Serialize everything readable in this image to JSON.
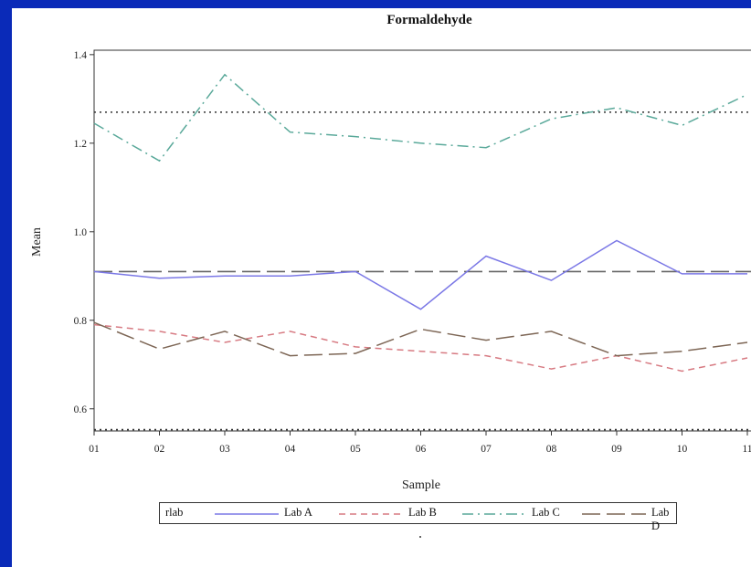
{
  "chart_data": {
    "type": "line",
    "title": "Formaldehyde",
    "xlabel": "Sample",
    "ylabel": "Mean",
    "categories": [
      "01",
      "02",
      "03",
      "04",
      "05",
      "06",
      "07",
      "08",
      "09",
      "10",
      "11"
    ],
    "y_ticks": [
      "0.6",
      "0.8",
      "1.0",
      "1.2",
      "1.4"
    ],
    "ylim": [
      0.55,
      1.41
    ],
    "series": [
      {
        "name": "Lab A",
        "color": "#7b78e6",
        "dash": "solid",
        "values": [
          0.91,
          0.895,
          0.9,
          0.9,
          0.91,
          0.825,
          0.945,
          0.89,
          0.98,
          0.905,
          0.905
        ]
      },
      {
        "name": "Lab B",
        "color": "#d77a82",
        "dash": "dashed",
        "values": [
          0.79,
          0.775,
          0.75,
          0.775,
          0.74,
          0.73,
          0.72,
          0.69,
          0.72,
          0.685,
          0.715
        ]
      },
      {
        "name": "Lab C",
        "color": "#5aa99a",
        "dash": "dashdot",
        "values": [
          1.245,
          1.16,
          1.355,
          1.225,
          1.215,
          1.2,
          1.19,
          1.255,
          1.28,
          1.24,
          1.31
        ]
      },
      {
        "name": "Lab D",
        "color": "#7d6655",
        "dash": "longdash",
        "values": [
          0.795,
          0.735,
          0.775,
          0.72,
          0.725,
          0.78,
          0.755,
          0.775,
          0.72,
          0.73,
          0.75
        ]
      }
    ],
    "reference_lines": [
      {
        "y": 1.27,
        "style": "dotted",
        "color": "#333333"
      },
      {
        "y": 0.91,
        "style": "longdash",
        "color": "#666666"
      },
      {
        "y": 0.553,
        "style": "dotted",
        "color": "#333333"
      }
    ],
    "legend": {
      "title": "rlab",
      "position": "bottom"
    }
  }
}
